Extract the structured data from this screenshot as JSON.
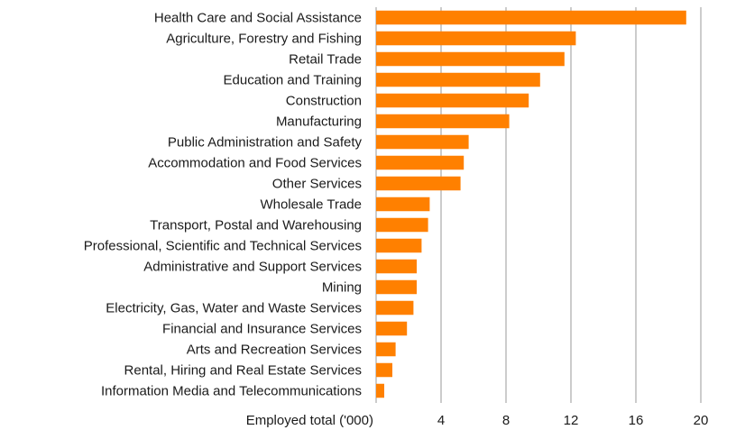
{
  "chart_data": {
    "type": "bar",
    "orientation": "horizontal",
    "xlabel": "Employed total ('000)",
    "ylabel": "",
    "title": "",
    "xlim": [
      0,
      20
    ],
    "xticks": [
      4,
      8,
      12,
      16,
      20
    ],
    "grid": true,
    "bar_color": "#ff8000",
    "categories": [
      "Health Care and Social Assistance",
      "Agriculture, Forestry and Fishing",
      "Retail Trade",
      "Education and Training",
      "Construction",
      "Manufacturing",
      "Public Administration and Safety",
      "Accommodation and Food Services",
      "Other Services",
      "Wholesale Trade",
      "Transport, Postal and Warehousing",
      "Professional, Scientific and Technical Services",
      "Administrative and Support Services",
      "Mining",
      "Electricity, Gas, Water and Waste Services",
      "Financial and Insurance Services",
      "Arts and Recreation Services",
      "Rental, Hiring and Real Estate Services",
      "Information Media and Telecommunications"
    ],
    "values": [
      19.1,
      12.3,
      11.6,
      10.1,
      9.4,
      8.2,
      5.7,
      5.4,
      5.2,
      3.3,
      3.2,
      2.8,
      2.5,
      2.5,
      2.3,
      1.9,
      1.2,
      1.0,
      0.5
    ]
  }
}
